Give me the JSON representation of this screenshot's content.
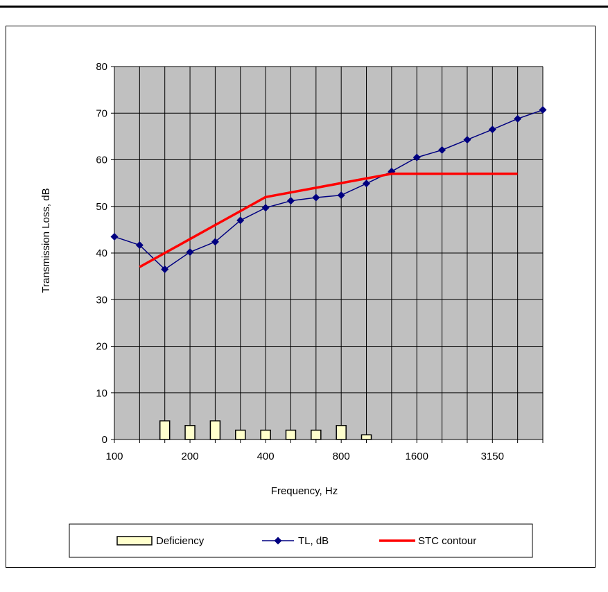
{
  "chart_data": {
    "type": "bar+line",
    "title": "",
    "xlabel": "Frequency, Hz",
    "ylabel": "Transmission Loss, dB",
    "ylim": [
      0,
      80
    ],
    "yticks": [
      0,
      10,
      20,
      30,
      40,
      50,
      60,
      70,
      80
    ],
    "x_band_count": 18,
    "x_tick_labels": [
      {
        "band": 0,
        "label": "100"
      },
      {
        "band": 3,
        "label": "200"
      },
      {
        "band": 6,
        "label": "400"
      },
      {
        "band": 9,
        "label": "800"
      },
      {
        "band": 12,
        "label": "1600"
      },
      {
        "band": 15,
        "label": "3150"
      }
    ],
    "grid": true,
    "plot_background": "#c0c0c0",
    "series": [
      {
        "name": "Deficiency",
        "kind": "bar",
        "color": "#ffffcc",
        "bands": [
          2,
          3,
          4,
          5,
          6,
          7,
          8,
          9,
          10
        ],
        "values": [
          4,
          3,
          4,
          2,
          2,
          2,
          2,
          3,
          1
        ]
      },
      {
        "name": "TL, dB",
        "kind": "line",
        "marker": "diamond",
        "color": "#000080",
        "bands": [
          0,
          1,
          2,
          3,
          4,
          5,
          6,
          7,
          8,
          9,
          10,
          11,
          12,
          13,
          14,
          15,
          16,
          17
        ],
        "values": [
          43.5,
          41.7,
          36.5,
          40.2,
          42.4,
          47.0,
          49.7,
          51.2,
          51.9,
          52.4,
          54.9,
          57.5,
          60.5,
          62.1,
          64.3,
          66.5,
          68.8,
          70.7
        ]
      },
      {
        "name": "STC contour",
        "kind": "line",
        "color": "#ff0000",
        "bands": [
          1,
          2,
          3,
          4,
          5,
          6,
          7,
          8,
          9,
          10,
          11,
          12,
          13,
          14,
          15,
          16
        ],
        "values": [
          37,
          40,
          43,
          46,
          49,
          52,
          53,
          54,
          55,
          56,
          57,
          57,
          57,
          57,
          57,
          57
        ]
      }
    ],
    "legend_position": "bottom"
  }
}
